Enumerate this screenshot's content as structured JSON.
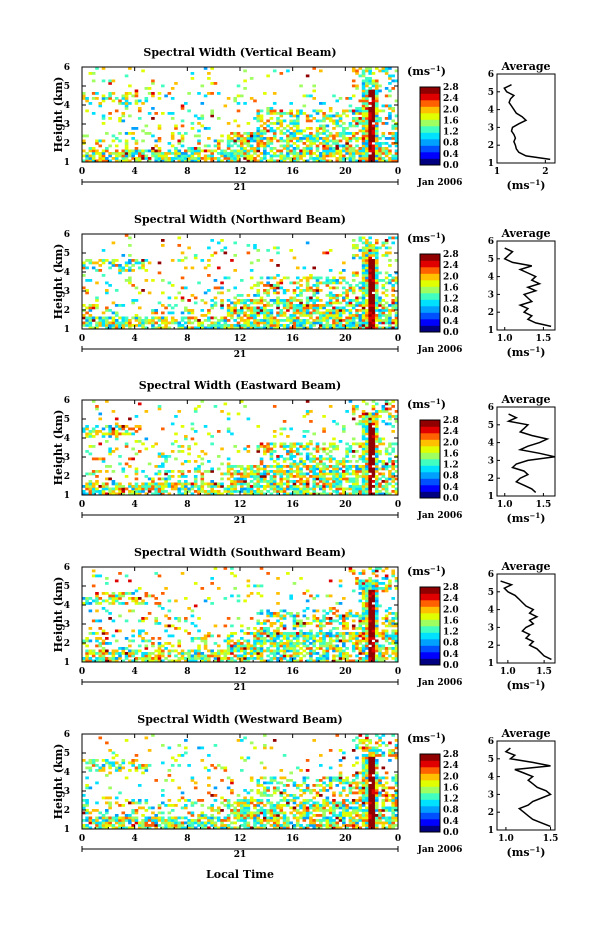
{
  "shared": {
    "ylabel": "Height (km)",
    "y_ticks": [
      "1",
      "2",
      "3",
      "4",
      "5",
      "6"
    ],
    "x_ticks": [
      "0",
      "4",
      "8",
      "12",
      "16",
      "20",
      "0"
    ],
    "day_label": "21",
    "month_label": "Jan 2006",
    "xlabel": "Local Time",
    "colorbar_unit": "(ms",
    "avg_title": "Average",
    "avg_unit": "(ms",
    "unit_exponent": "−1"
  },
  "colors": {
    "scale": [
      "#000080",
      "#0000ff",
      "#0050ff",
      "#00a0ff",
      "#00e0ff",
      "#40ffc0",
      "#a0ff60",
      "#e0ff00",
      "#ffc000",
      "#ff6000",
      "#e00000",
      "#900000"
    ]
  },
  "chart_data": [
    {
      "type": "heatmap",
      "title": "Spectral Width (Vertical Beam)",
      "ylabel": "Height (km)",
      "ylim": [
        1,
        6
      ],
      "x_ticks": [
        "0",
        "4",
        "8",
        "12",
        "16",
        "20",
        "0"
      ],
      "xlim_hours": [
        0,
        24
      ],
      "colorbar_ticks": [
        "0.0",
        "0.4",
        "0.8",
        "1.2",
        "1.6",
        "2.0",
        "2.4",
        "2.8"
      ],
      "colorbar_range": [
        0.0,
        2.8
      ],
      "average_profile": {
        "title": "Average",
        "x_ticks": [
          "1",
          "2"
        ],
        "xlim": [
          1,
          2.2
        ],
        "ylim": [
          1,
          6
        ],
        "height_km": [
          1.2,
          1.4,
          1.6,
          1.8,
          2.0,
          2.2,
          2.4,
          2.6,
          2.8,
          3.0,
          3.2,
          3.4,
          3.6,
          3.8,
          4.0,
          4.2,
          4.4,
          4.6,
          4.8,
          5.0,
          5.2,
          5.4
        ],
        "width_ms": [
          2.1,
          1.6,
          1.45,
          1.4,
          1.38,
          1.35,
          1.38,
          1.35,
          1.3,
          1.32,
          1.45,
          1.6,
          1.52,
          1.4,
          1.35,
          1.3,
          1.25,
          1.28,
          1.35,
          1.2,
          1.15,
          1.3
        ]
      }
    },
    {
      "type": "heatmap",
      "title": "Spectral Width (Northward Beam)",
      "ylabel": "Height (km)",
      "ylim": [
        1,
        6
      ],
      "x_ticks": [
        "0",
        "4",
        "8",
        "12",
        "16",
        "20",
        "0"
      ],
      "xlim_hours": [
        0,
        24
      ],
      "colorbar_ticks": [
        "0.0",
        "0.4",
        "0.8",
        "1.2",
        "1.6",
        "2.0",
        "2.4",
        "2.8"
      ],
      "colorbar_range": [
        0.0,
        2.8
      ],
      "average_profile": {
        "title": "Average",
        "x_ticks": [
          "1.0",
          "1.5"
        ],
        "xlim": [
          0.9,
          1.65
        ],
        "ylim": [
          1,
          6
        ],
        "height_km": [
          1.2,
          1.4,
          1.6,
          1.8,
          2.0,
          2.2,
          2.4,
          2.6,
          2.8,
          3.0,
          3.2,
          3.4,
          3.6,
          3.8,
          4.0,
          4.2,
          4.4,
          4.6,
          4.8,
          5.0,
          5.2,
          5.4,
          5.6
        ],
        "width_ms": [
          1.6,
          1.4,
          1.3,
          1.35,
          1.25,
          1.3,
          1.2,
          1.35,
          1.3,
          1.25,
          1.4,
          1.3,
          1.45,
          1.35,
          1.4,
          1.3,
          1.2,
          1.35,
          1.1,
          1.0,
          1.05,
          1.1,
          1.0
        ]
      }
    },
    {
      "type": "heatmap",
      "title": "Spectral Width (Eastward Beam)",
      "ylabel": "Height (km)",
      "ylim": [
        1,
        6
      ],
      "x_ticks": [
        "0",
        "4",
        "8",
        "12",
        "16",
        "20",
        "0"
      ],
      "xlim_hours": [
        0,
        24
      ],
      "colorbar_ticks": [
        "0.0",
        "0.4",
        "0.8",
        "1.2",
        "1.6",
        "2.0",
        "2.4",
        "2.8"
      ],
      "colorbar_range": [
        0.0,
        2.8
      ],
      "average_profile": {
        "title": "Average",
        "x_ticks": [
          "1.0",
          "1.5"
        ],
        "xlim": [
          0.9,
          1.65
        ],
        "ylim": [
          1,
          6
        ],
        "height_km": [
          1.2,
          1.4,
          1.6,
          1.8,
          2.0,
          2.2,
          2.4,
          2.6,
          2.8,
          3.0,
          3.2,
          3.4,
          3.6,
          3.8,
          4.0,
          4.2,
          4.4,
          4.6,
          4.8,
          5.0,
          5.2,
          5.4,
          5.6
        ],
        "width_ms": [
          1.4,
          1.35,
          1.25,
          1.15,
          1.2,
          1.3,
          1.25,
          1.1,
          1.15,
          1.3,
          1.65,
          1.45,
          1.2,
          1.3,
          1.45,
          1.55,
          1.35,
          1.2,
          1.25,
          1.3,
          1.05,
          1.15,
          1.05
        ]
      }
    },
    {
      "type": "heatmap",
      "title": "Spectral Width (Southward Beam)",
      "ylabel": "Height (km)",
      "ylim": [
        1,
        6
      ],
      "x_ticks": [
        "0",
        "4",
        "8",
        "12",
        "16",
        "20",
        "0"
      ],
      "xlim_hours": [
        0,
        24
      ],
      "colorbar_ticks": [
        "0.0",
        "0.4",
        "0.8",
        "1.2",
        "1.6",
        "2.0",
        "2.4",
        "2.8"
      ],
      "colorbar_range": [
        0.0,
        2.8
      ],
      "average_profile": {
        "title": "Average",
        "x_ticks": [
          "1.0",
          "1.5"
        ],
        "xlim": [
          0.85,
          1.65
        ],
        "ylim": [
          1,
          6
        ],
        "height_km": [
          1.2,
          1.4,
          1.6,
          1.8,
          2.0,
          2.2,
          2.4,
          2.6,
          2.8,
          3.0,
          3.2,
          3.4,
          3.6,
          3.8,
          4.0,
          4.2,
          4.4,
          4.6,
          4.8,
          5.0,
          5.2,
          5.4,
          5.6
        ],
        "width_ms": [
          1.6,
          1.5,
          1.45,
          1.4,
          1.3,
          1.35,
          1.25,
          1.3,
          1.2,
          1.25,
          1.35,
          1.3,
          1.4,
          1.3,
          1.35,
          1.25,
          1.2,
          1.15,
          1.1,
          1.0,
          0.95,
          1.05,
          0.9
        ]
      }
    },
    {
      "type": "heatmap",
      "title": "Spectral Width (Westward Beam)",
      "ylabel": "Height (km)",
      "ylim": [
        1,
        6
      ],
      "x_ticks": [
        "0",
        "4",
        "8",
        "12",
        "16",
        "20",
        "0"
      ],
      "xlim_hours": [
        0,
        24
      ],
      "colorbar_ticks": [
        "0.0",
        "0.4",
        "0.8",
        "1.2",
        "1.6",
        "2.0",
        "2.4",
        "2.8"
      ],
      "colorbar_range": [
        0.0,
        2.8
      ],
      "average_profile": {
        "title": "Average",
        "x_ticks": [
          "1.0",
          "1.5"
        ],
        "xlim": [
          0.9,
          1.55
        ],
        "ylim": [
          1,
          6
        ],
        "height_km": [
          1.2,
          1.4,
          1.6,
          1.8,
          2.0,
          2.2,
          2.4,
          2.6,
          2.8,
          3.0,
          3.2,
          3.4,
          3.6,
          3.8,
          4.0,
          4.2,
          4.4,
          4.6,
          4.8,
          5.0,
          5.2,
          5.4,
          5.6
        ],
        "width_ms": [
          1.5,
          1.4,
          1.3,
          1.25,
          1.2,
          1.15,
          1.25,
          1.3,
          1.4,
          1.5,
          1.45,
          1.35,
          1.3,
          1.25,
          1.3,
          1.2,
          1.1,
          1.5,
          1.3,
          1.05,
          1.1,
          1.0,
          1.05
        ]
      }
    }
  ]
}
